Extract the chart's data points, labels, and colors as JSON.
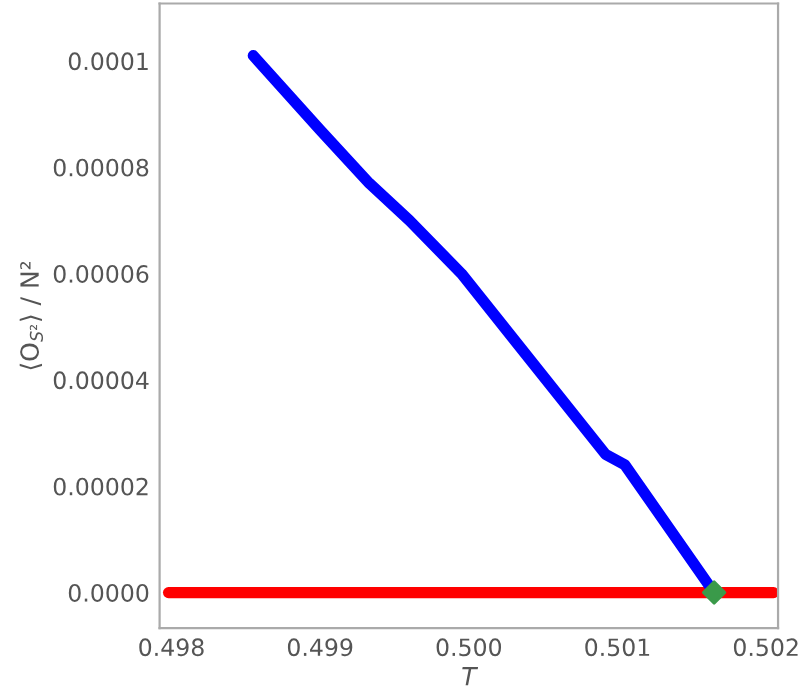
{
  "chart_data": {
    "type": "line",
    "xlabel": "T",
    "ylabel": "⟨O$_{S²}$⟩ / N²",
    "series": [
      {
        "color": "#ff0000",
        "x": [
          0.49798,
          0.50205
        ],
        "values": [
          0,
          0
        ]
      },
      {
        "color": "#0000ff",
        "x": [
          0.49855,
          0.499,
          0.49933,
          0.4996,
          0.49995,
          0.50092,
          0.50105,
          0.50165
        ],
        "values": [
          0.000101,
          8.7e-05,
          7.7e-05,
          7e-05,
          6e-05,
          2.6e-05,
          2.4e-05,
          0
        ]
      },
      {
        "type": "scatter",
        "color": "#3a9a4a",
        "marker": "diamond",
        "x": [
          0.50165
        ],
        "values": [
          0
        ]
      }
    ],
    "xlim": [
      0.49792,
      0.50208
    ],
    "xticks": [
      {
        "value": 0.498,
        "label": "0.498"
      },
      {
        "value": 0.499,
        "label": "0.499"
      },
      {
        "value": 0.5,
        "label": "0.500"
      },
      {
        "value": 0.501,
        "label": "0.501"
      },
      {
        "value": 0.502,
        "label": "0.502"
      }
    ],
    "ylim": [
      -6.7e-06,
      0.0001108
    ],
    "yticks": [
      {
        "value": 0,
        "label": "0.0000"
      },
      {
        "value": 2e-05,
        "label": "0.00002"
      },
      {
        "value": 4e-05,
        "label": "0.00004"
      },
      {
        "value": 6e-05,
        "label": "0.00006"
      },
      {
        "value": 8e-05,
        "label": "0.00008"
      },
      {
        "value": 0.0001,
        "label": "0.0001"
      }
    ],
    "grid": false,
    "legend": false
  }
}
